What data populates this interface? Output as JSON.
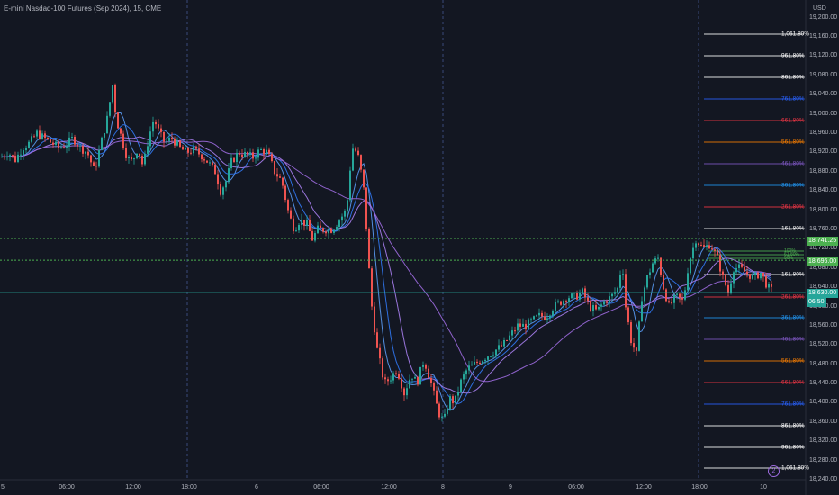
{
  "header": {
    "title": "E-mini Nasdaq-100 Futures (Sep 2024), 15, CME"
  },
  "axis": {
    "currency": "USD",
    "y_ticks": [
      "19,200.00",
      "19,160.00",
      "19,120.00",
      "19,080.00",
      "19,040.00",
      "19,000.00",
      "18,960.00",
      "18,920.00",
      "18,880.00",
      "18,840.00",
      "18,800.00",
      "18,760.00",
      "18,720.00",
      "18,680.00",
      "18,640.00",
      "18,600.00",
      "18,560.00",
      "18,520.00",
      "18,480.00",
      "18,440.00",
      "18,400.00",
      "18,360.00",
      "18,320.00",
      "18,280.00",
      "18,240.00"
    ],
    "x_ticks": [
      "5",
      "06:00",
      "12:00",
      "18:00",
      "6",
      "06:00",
      "12:00",
      "8",
      "9",
      "06:00",
      "12:00",
      "18:00",
      "10"
    ]
  },
  "price_tags": {
    "high_level": "18,741.25",
    "mid_level": "18,696.00",
    "last_price": "18,630.00",
    "countdown": "06:50"
  },
  "fib_levels": [
    {
      "label": "1,061.80%",
      "color": "#ffffff"
    },
    {
      "label": "961.80%",
      "color": "#ffffff"
    },
    {
      "label": "861.80%",
      "color": "#ffffff"
    },
    {
      "label": "761.80%",
      "color": "#2962ff"
    },
    {
      "label": "661.80%",
      "color": "#f23645"
    },
    {
      "label": "561.80%",
      "color": "#f57c00"
    },
    {
      "label": "461.80%",
      "color": "#7e57c2"
    },
    {
      "label": "361.80%",
      "color": "#2196f3"
    },
    {
      "label": "261.80%",
      "color": "#f23645"
    },
    {
      "label": "161.80%",
      "color": "#ffffff"
    },
    {
      "label": "100%",
      "color": "#4caf50"
    },
    {
      "label": "61.80%",
      "color": "#4caf50"
    },
    {
      "label": "50%",
      "color": "#4caf50"
    },
    {
      "label": "161.80%",
      "color": "#ffffff"
    },
    {
      "label": "261.80%",
      "color": "#f23645"
    },
    {
      "label": "361.80%",
      "color": "#2196f3"
    },
    {
      "label": "461.80%",
      "color": "#7e57c2"
    },
    {
      "label": "561.80%",
      "color": "#f57c00"
    },
    {
      "label": "661.80%",
      "color": "#f23645"
    },
    {
      "label": "761.80%",
      "color": "#2962ff"
    },
    {
      "label": "861.80%",
      "color": "#ffffff"
    },
    {
      "label": "961.80%",
      "color": "#ffffff"
    },
    {
      "label": "1,061.80%",
      "color": "#ffffff"
    }
  ],
  "badge": {
    "text": "2"
  },
  "colors": {
    "background": "#131722",
    "up": "#26a69a",
    "down": "#ef5350",
    "ma1": "#5b9cf6",
    "ma2": "#9c6ade",
    "ma3": "#3179f5",
    "ma4": "#a87ff0",
    "dotted_level": "#4caf50"
  },
  "chart_data": {
    "type": "candlestick",
    "symbol": "E-mini Nasdaq-100 Futures (Sep 2024)",
    "interval": "15",
    "exchange": "CME",
    "ylim": [
      18240,
      19220
    ],
    "close_path": [
      [
        0,
        18910
      ],
      [
        8,
        18920
      ],
      [
        16,
        18905
      ],
      [
        24,
        18930
      ],
      [
        32,
        18940
      ],
      [
        40,
        18960
      ],
      [
        48,
        18950
      ],
      [
        56,
        18940
      ],
      [
        64,
        18930
      ],
      [
        72,
        18935
      ],
      [
        80,
        18950
      ],
      [
        88,
        18930
      ],
      [
        96,
        18920
      ],
      [
        104,
        18880
      ],
      [
        110,
        18930
      ],
      [
        118,
        18990
      ],
      [
        124,
        19060
      ],
      [
        128,
        18990
      ],
      [
        134,
        18950
      ],
      [
        140,
        18910
      ],
      [
        146,
        18900
      ],
      [
        152,
        18930
      ],
      [
        158,
        18890
      ],
      [
        164,
        18950
      ],
      [
        170,
        18990
      ],
      [
        176,
        18960
      ],
      [
        182,
        18940
      ],
      [
        190,
        18950
      ],
      [
        198,
        18930
      ],
      [
        206,
        18920
      ],
      [
        214,
        18925
      ],
      [
        222,
        18915
      ],
      [
        230,
        18900
      ],
      [
        238,
        18880
      ],
      [
        244,
        18840
      ],
      [
        250,
        18860
      ],
      [
        256,
        18900
      ],
      [
        264,
        18920
      ],
      [
        272,
        18915
      ],
      [
        280,
        18910
      ],
      [
        288,
        18925
      ],
      [
        296,
        18920
      ],
      [
        304,
        18880
      ],
      [
        312,
        18860
      ],
      [
        320,
        18790
      ],
      [
        326,
        18760
      ],
      [
        332,
        18780
      ],
      [
        340,
        18770
      ],
      [
        346,
        18740
      ],
      [
        352,
        18760
      ],
      [
        360,
        18760
      ],
      [
        368,
        18760
      ],
      [
        376,
        18780
      ],
      [
        384,
        18800
      ],
      [
        390,
        18930
      ],
      [
        396,
        18920
      ],
      [
        400,
        18880
      ],
      [
        404,
        18830
      ],
      [
        408,
        18700
      ],
      [
        412,
        18600
      ],
      [
        418,
        18510
      ],
      [
        426,
        18440
      ],
      [
        432,
        18450
      ],
      [
        440,
        18470
      ],
      [
        448,
        18420
      ],
      [
        456,
        18460
      ],
      [
        462,
        18440
      ],
      [
        470,
        18490
      ],
      [
        478,
        18440
      ],
      [
        486,
        18380
      ],
      [
        492,
        18360
      ],
      [
        498,
        18410
      ],
      [
        504,
        18400
      ],
      [
        510,
        18440
      ],
      [
        518,
        18470
      ],
      [
        526,
        18480
      ],
      [
        534,
        18490
      ],
      [
        542,
        18500
      ],
      [
        550,
        18510
      ],
      [
        558,
        18520
      ],
      [
        566,
        18540
      ],
      [
        574,
        18560
      ],
      [
        582,
        18560
      ],
      [
        590,
        18570
      ],
      [
        598,
        18580
      ],
      [
        606,
        18580
      ],
      [
        614,
        18600
      ],
      [
        622,
        18610
      ],
      [
        630,
        18620
      ],
      [
        638,
        18620
      ],
      [
        646,
        18630
      ],
      [
        654,
        18600
      ],
      [
        662,
        18590
      ],
      [
        670,
        18610
      ],
      [
        678,
        18620
      ],
      [
        686,
        18640
      ],
      [
        690,
        18700
      ],
      [
        694,
        18600
      ],
      [
        700,
        18530
      ],
      [
        706,
        18500
      ],
      [
        712,
        18620
      ],
      [
        718,
        18660
      ],
      [
        724,
        18690
      ],
      [
        730,
        18700
      ],
      [
        736,
        18640
      ],
      [
        742,
        18600
      ],
      [
        750,
        18620
      ],
      [
        758,
        18610
      ],
      [
        764,
        18690
      ],
      [
        772,
        18740
      ],
      [
        780,
        18720
      ],
      [
        788,
        18730
      ],
      [
        796,
        18700
      ],
      [
        802,
        18660
      ],
      [
        808,
        18630
      ],
      [
        814,
        18680
      ],
      [
        820,
        18680
      ],
      [
        828,
        18670
      ],
      [
        836,
        18660
      ],
      [
        844,
        18670
      ],
      [
        852,
        18640
      ],
      [
        858,
        18630
      ]
    ],
    "vertical_session_lines_at": [
      "18:00 day 5",
      "8",
      "18:00 day 9"
    ],
    "dotted_levels": [
      18741.25,
      18696.0
    ],
    "last_price": 18630.0
  }
}
